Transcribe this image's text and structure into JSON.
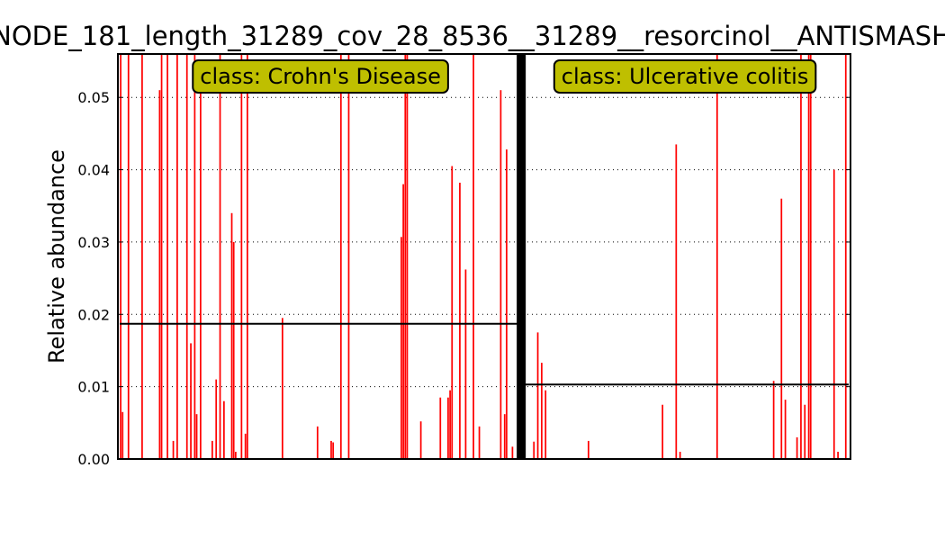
{
  "chart_data": {
    "type": "bar",
    "title": "NODE_181_length_31289_cov_28_8536__31289__resorcinol__ANTISMASH",
    "ylabel": "Relative abundance",
    "xlabel": "",
    "ylim": [
      0,
      0.056
    ],
    "yticks": [
      0.0,
      0.01,
      0.02,
      0.03,
      0.04,
      0.05
    ],
    "ytick_labels": [
      "0.00",
      "0.01",
      "0.02",
      "0.03",
      "0.04",
      "0.05"
    ],
    "grid": "horizontal dotted",
    "bar_color": "#ff0000",
    "separator_color": "#000000",
    "label_box_color": "#bfbf00",
    "groups": [
      {
        "class_label": "class: Crohn's Disease",
        "mean": 0.0187,
        "values": [
          0.056,
          0.0065,
          0,
          0,
          0.056,
          0,
          0,
          0,
          0,
          0,
          0,
          0.056,
          0,
          0,
          0,
          0,
          0,
          0,
          0,
          0,
          0.051,
          0.056,
          0,
          0,
          0.056,
          0,
          0,
          0.0025,
          0,
          0.056,
          0,
          0,
          0,
          0,
          0.056,
          0,
          0.016,
          0,
          0.056,
          0.0062,
          0,
          0.052,
          0,
          0,
          0,
          0,
          0,
          0.0025,
          0,
          0.011,
          0,
          0.056,
          0,
          0.008,
          0,
          0,
          0,
          0.034,
          0.03,
          0.001,
          0,
          0,
          0.056,
          0,
          0.0035,
          0.056,
          0,
          0,
          0,
          0,
          0,
          0,
          0,
          0,
          0,
          0,
          0,
          0,
          0,
          0,
          0,
          0,
          0,
          0.0195,
          0,
          0,
          0,
          0,
          0,
          0,
          0,
          0,
          0,
          0,
          0,
          0,
          0,
          0,
          0,
          0,
          0,
          0.0045,
          0,
          0,
          0,
          0,
          0,
          0,
          0.0025,
          0.0023,
          0,
          0,
          0,
          0.056,
          0,
          0,
          0,
          0.056,
          0,
          0,
          0,
          0,
          0,
          0,
          0,
          0,
          0,
          0,
          0,
          0,
          0,
          0,
          0,
          0,
          0,
          0,
          0,
          0,
          0,
          0,
          0,
          0,
          0,
          0,
          0.0307,
          0.038,
          0.056,
          0.056,
          0,
          0,
          0,
          0,
          0,
          0,
          0.0052,
          0,
          0,
          0,
          0,
          0,
          0,
          0,
          0,
          0,
          0.0085,
          0,
          0,
          0,
          0.0085,
          0.0095,
          0.0405,
          0,
          0,
          0,
          0.0382,
          0,
          0,
          0.0262,
          0,
          0,
          0,
          0.056,
          0,
          0,
          0.0045,
          0,
          0,
          0,
          0,
          0,
          0,
          0,
          0,
          0,
          0,
          0.051,
          0,
          0.0062,
          0.0428,
          0,
          0,
          0.0017,
          0,
          0,
          0,
          0.056
        ]
      },
      {
        "class_label": "class: Ulcerative colitis",
        "mean": 0.0103,
        "values": [
          0,
          0,
          0,
          0,
          0,
          0,
          0.0024,
          0,
          0.0175,
          0,
          0.0133,
          0,
          0.0095,
          0,
          0,
          0,
          0,
          0,
          0,
          0,
          0,
          0,
          0,
          0,
          0,
          0,
          0,
          0,
          0,
          0,
          0,
          0,
          0,
          0,
          0.0025,
          0,
          0,
          0,
          0,
          0,
          0,
          0,
          0,
          0,
          0,
          0,
          0,
          0,
          0,
          0,
          0,
          0,
          0,
          0,
          0,
          0,
          0,
          0,
          0,
          0,
          0,
          0,
          0,
          0,
          0,
          0,
          0,
          0,
          0,
          0,
          0,
          0,
          0.0075,
          0,
          0,
          0,
          0,
          0,
          0,
          0.0435,
          0,
          0.001,
          0,
          0,
          0,
          0,
          0,
          0,
          0,
          0,
          0,
          0,
          0,
          0,
          0,
          0,
          0,
          0,
          0,
          0,
          0.056,
          0,
          0,
          0,
          0,
          0,
          0,
          0,
          0,
          0,
          0,
          0,
          0,
          0,
          0,
          0,
          0,
          0,
          0,
          0,
          0,
          0,
          0,
          0,
          0,
          0,
          0,
          0,
          0,
          0.0108,
          0,
          0,
          0,
          0.036,
          0,
          0.0082,
          0,
          0,
          0,
          0,
          0,
          0.003,
          0,
          0.056,
          0,
          0.0075,
          0,
          0.056,
          0.056,
          0,
          0,
          0,
          0,
          0,
          0,
          0,
          0,
          0,
          0,
          0,
          0.04,
          0,
          0.001,
          0,
          0,
          0,
          0.056,
          0
        ]
      }
    ]
  }
}
